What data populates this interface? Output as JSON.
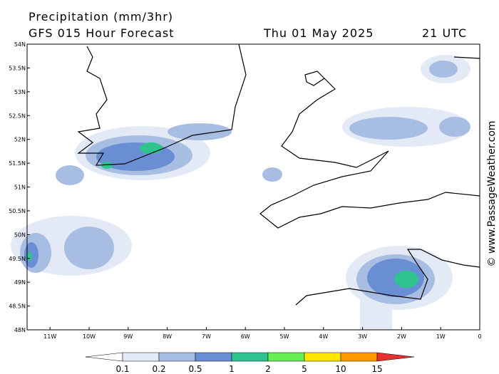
{
  "header": {
    "title": "Precipitation (mm/3hr)",
    "subtitle": "GFS 015 Hour Forecast",
    "date": "Thu 01 May 2025",
    "time": "21 UTC"
  },
  "lat_labels": [
    "54N",
    "53.5N",
    "53N",
    "52.5N",
    "52N",
    "51.5N",
    "51N",
    "50.5N",
    "50N",
    "49.5N",
    "49N",
    "48.5N",
    "48N"
  ],
  "lon_labels": [
    "11W",
    "10W",
    "9W",
    "8W",
    "7W",
    "6W",
    "5W",
    "4W",
    "3W",
    "2W",
    "1W",
    "0"
  ],
  "colorbar": {
    "labels": [
      "0.1",
      "0.2",
      "0.5",
      "1",
      "2",
      "5",
      "10",
      "15"
    ],
    "colors": [
      "#ffffff",
      "#e3eaf6",
      "#a8bde2",
      "#6a8ed3",
      "#2fc48f",
      "#66ee55",
      "#ffe600",
      "#ff9900",
      "#e83030"
    ]
  },
  "watermark": "© www.PassageWeather.com"
}
